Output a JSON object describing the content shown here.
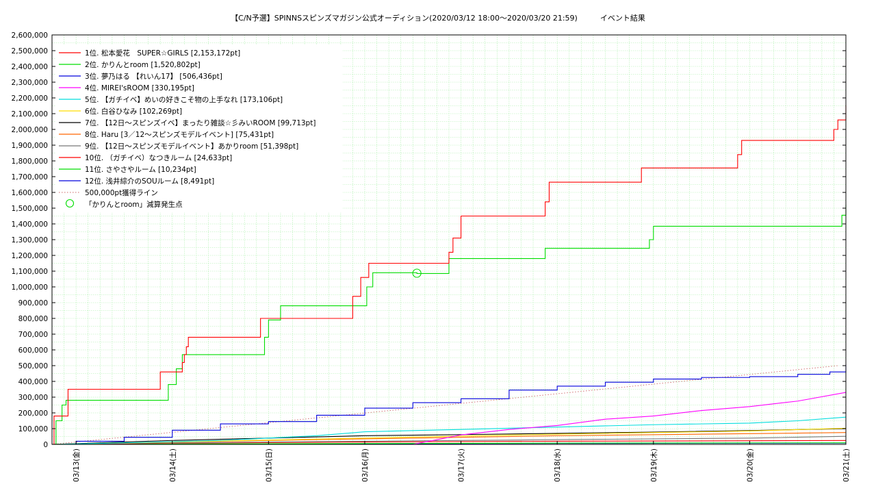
{
  "chart_data": {
    "type": "line",
    "title": "【C/N予選】SPINNSスピンズマガジン公式オーディション(2020/03/12 18:00～2020/03/20 21:59)　　　イベント結果",
    "xlabel": "",
    "ylabel": "",
    "ylim": [
      0,
      2600000
    ],
    "xlim": [
      "2020-03-12 18:00",
      "2020-03-21 00:00"
    ],
    "grid": true,
    "legend_position": "top-left",
    "x_tick_labels": [
      "03/13(金)",
      "03/14(土)",
      "03/15(日)",
      "03/16(月)",
      "03/17(火)",
      "03/18(水)",
      "03/19(木)",
      "03/20(金)",
      "03/21(土)"
    ],
    "y_tick_labels": [
      "0",
      "100,000",
      "200,000",
      "300,000",
      "400,000",
      "500,000",
      "600,000",
      "700,000",
      "800,000",
      "900,000",
      "1,000,000",
      "1,100,000",
      "1,200,000",
      "1,300,000",
      "1,400,000",
      "1,500,000",
      "1,600,000",
      "1,700,000",
      "1,800,000",
      "1,900,000",
      "2,000,000",
      "2,100,000",
      "2,200,000",
      "2,300,000",
      "2,400,000",
      "2,500,000",
      "2,600,000"
    ],
    "series": [
      {
        "name": "1位. 松本愛花　SUPER☆GIRLS [2,153,172pt]",
        "color": "#ff0000",
        "step": true,
        "x": [
          "2020-03-12 18:00",
          "2020-03-12 18:30",
          "2020-03-12 21:00",
          "2020-03-12 22:00",
          "2020-03-13 20:00",
          "2020-03-13 21:00",
          "2020-03-14 02:00",
          "2020-03-14 02:30",
          "2020-03-14 03:00",
          "2020-03-14 03:30",
          "2020-03-14 04:00",
          "2020-03-14 21:00",
          "2020-03-14 22:00",
          "2020-03-15 20:00",
          "2020-03-15 21:00",
          "2020-03-15 23:00",
          "2020-03-16 01:00",
          "2020-03-16 20:00",
          "2020-03-16 21:00",
          "2020-03-16 22:00",
          "2020-03-17 00:00",
          "2020-03-17 20:00",
          "2020-03-17 21:00",
          "2020-03-17 22:00",
          "2020-03-18 20:00",
          "2020-03-18 21:00",
          "2020-03-19 20:00",
          "2020-03-19 21:00",
          "2020-03-19 22:00",
          "2020-03-20 20:00",
          "2020-03-20 21:00",
          "2020-03-20 22:00",
          "2020-03-21 00:00"
        ],
        "y": [
          0,
          180000,
          180000,
          350000,
          350000,
          460000,
          460000,
          520000,
          570000,
          620000,
          680000,
          680000,
          800000,
          800000,
          940000,
          1060000,
          1150000,
          1150000,
          1220000,
          1310000,
          1450000,
          1450000,
          1540000,
          1665000,
          1665000,
          1755000,
          1755000,
          1840000,
          1930000,
          1930000,
          2000000,
          2060000,
          2153172
        ]
      },
      {
        "name": "2位. かりんとroom [1,520,802pt]",
        "color": "#00dd00",
        "step": true,
        "x": [
          "2020-03-12 18:00",
          "2020-03-12 19:00",
          "2020-03-12 20:30",
          "2020-03-12 21:30",
          "2020-03-13 22:00",
          "2020-03-13 23:00",
          "2020-03-14 01:00",
          "2020-03-14 02:30",
          "2020-03-14 04:00",
          "2020-03-14 23:00",
          "2020-03-15 00:00",
          "2020-03-15 01:00",
          "2020-03-15 03:00",
          "2020-03-15 23:00",
          "2020-03-16 00:30",
          "2020-03-16 02:00",
          "2020-03-16 13:00",
          "2020-03-16 13:01",
          "2020-03-16 20:00",
          "2020-03-16 21:00",
          "2020-03-17 20:00",
          "2020-03-17 21:00",
          "2020-03-18 22:00",
          "2020-03-18 23:00",
          "2020-03-19 00:00",
          "2020-03-20 22:00",
          "2020-03-20 23:00",
          "2020-03-21 00:00"
        ],
        "y": [
          0,
          150000,
          250000,
          280000,
          280000,
          380000,
          480000,
          570000,
          570000,
          680000,
          790000,
          790000,
          880000,
          880000,
          1000000,
          1090000,
          1090000,
          1085000,
          1085000,
          1180000,
          1180000,
          1245000,
          1245000,
          1300000,
          1385000,
          1385000,
          1455000,
          1520802
        ]
      },
      {
        "name": "3位. 夢乃はる 【れいん17】 [506,436pt]",
        "color": "#0000dd",
        "step": true,
        "x": [
          "2020-03-12 18:00",
          "2020-03-13 00:00",
          "2020-03-13 12:00",
          "2020-03-14 00:00",
          "2020-03-14 12:00",
          "2020-03-15 00:00",
          "2020-03-15 12:00",
          "2020-03-16 00:00",
          "2020-03-16 12:00",
          "2020-03-17 00:00",
          "2020-03-17 12:00",
          "2020-03-18 00:00",
          "2020-03-18 12:00",
          "2020-03-19 00:00",
          "2020-03-19 12:00",
          "2020-03-20 00:00",
          "2020-03-20 12:00",
          "2020-03-20 20:00",
          "2020-03-21 00:00"
        ],
        "y": [
          0,
          20000,
          45000,
          90000,
          130000,
          145000,
          185000,
          230000,
          265000,
          290000,
          345000,
          370000,
          395000,
          415000,
          425000,
          430000,
          445000,
          460000,
          506436
        ]
      },
      {
        "name": "4位. MIREI'sROOM [330,195pt]",
        "color": "#ff00ff",
        "step": false,
        "x": [
          "2020-03-12 18:00",
          "2020-03-16 12:00",
          "2020-03-17 00:00",
          "2020-03-17 12:00",
          "2020-03-18 00:00",
          "2020-03-18 12:00",
          "2020-03-19 00:00",
          "2020-03-19 12:00",
          "2020-03-20 00:00",
          "2020-03-20 12:00",
          "2020-03-21 00:00"
        ],
        "y": [
          0,
          0,
          60000,
          95000,
          120000,
          160000,
          180000,
          215000,
          240000,
          275000,
          330195
        ]
      },
      {
        "name": "5位. 【ガチイベ】めいの好きこそ物の上手なれ [173,106pt]",
        "color": "#00dddd",
        "step": false,
        "x": [
          "2020-03-12 18:00",
          "2020-03-13 12:00",
          "2020-03-14 12:00",
          "2020-03-15 12:00",
          "2020-03-16 00:00",
          "2020-03-17 00:00",
          "2020-03-18 00:00",
          "2020-03-19 00:00",
          "2020-03-20 00:00",
          "2020-03-20 12:00",
          "2020-03-21 00:00"
        ],
        "y": [
          0,
          10000,
          25000,
          55000,
          80000,
          95000,
          110000,
          125000,
          135000,
          150000,
          173106
        ]
      },
      {
        "name": "6位. 白谷ひなみ [102,269pt]",
        "color": "#ffdd00",
        "step": false,
        "x": [
          "2020-03-12 18:00",
          "2020-03-14 00:00",
          "2020-03-16 00:00",
          "2020-03-18 00:00",
          "2020-03-20 00:00",
          "2020-03-21 00:00"
        ],
        "y": [
          0,
          15000,
          40000,
          65000,
          85000,
          102269
        ]
      },
      {
        "name": "7位. 【12日～スピンズイベ】まったり雑談☆彡みいROOM [99,713pt]",
        "color": "#000000",
        "step": false,
        "x": [
          "2020-03-12 18:00",
          "2020-03-14 00:00",
          "2020-03-15 00:00",
          "2020-03-16 00:00",
          "2020-03-17 00:00",
          "2020-03-18 00:00",
          "2020-03-19 00:00",
          "2020-03-20 00:00",
          "2020-03-21 00:00"
        ],
        "y": [
          0,
          25000,
          40000,
          55000,
          62000,
          70000,
          78000,
          88000,
          99713
        ]
      },
      {
        "name": "8位. Haru [3／12～スピンズモデルイベント] [75,431pt]",
        "color": "#ff6600",
        "step": false,
        "x": [
          "2020-03-12 18:00",
          "2020-03-14 00:00",
          "2020-03-16 00:00",
          "2020-03-18 00:00",
          "2020-03-20 00:00",
          "2020-03-21 00:00"
        ],
        "y": [
          0,
          15000,
          35000,
          55000,
          68000,
          75431
        ]
      },
      {
        "name": "9位. 【12日～スピンズモデルイベント】あかりroom [51,398pt]",
        "color": "#777777",
        "step": false,
        "x": [
          "2020-03-12 18:00",
          "2020-03-14 00:00",
          "2020-03-16 00:00",
          "2020-03-18 00:00",
          "2020-03-20 00:00",
          "2020-03-21 00:00"
        ],
        "y": [
          0,
          10000,
          20000,
          30000,
          40000,
          51398
        ]
      },
      {
        "name": "10位. （ガチイベ）なつきルーム [24,633pt]",
        "color": "#ff0000",
        "step": false,
        "x": [
          "2020-03-12 18:00",
          "2020-03-14 00:00",
          "2020-03-16 00:00",
          "2020-03-18 00:00",
          "2020-03-21 00:00"
        ],
        "y": [
          0,
          8000,
          15000,
          20000,
          24633
        ]
      },
      {
        "name": "11位. さやさやルーム [10,234pt]",
        "color": "#00dd00",
        "step": false,
        "x": [
          "2020-03-12 18:00",
          "2020-03-15 00:00",
          "2020-03-18 00:00",
          "2020-03-21 00:00"
        ],
        "y": [
          0,
          4000,
          8000,
          10234
        ]
      },
      {
        "name": "12位. 浅井綜介のSOUルーム [8,491pt]",
        "color": "#0000dd",
        "step": false,
        "x": [
          "2020-03-12 18:00",
          "2020-03-15 00:00",
          "2020-03-18 00:00",
          "2020-03-21 00:00"
        ],
        "y": [
          0,
          3000,
          6000,
          8491
        ]
      }
    ],
    "reference_line": {
      "name": "500,000pt獲得ライン",
      "color": "#cc6666",
      "x": [
        "2020-03-12 18:00",
        "2020-03-20 22:00"
      ],
      "y": [
        0,
        500000
      ]
    },
    "event_marker": {
      "name": "「かりんとroom」減算発生点",
      "color": "#00dd00",
      "x": "2020-03-16 13:00",
      "y": 1087000
    }
  }
}
